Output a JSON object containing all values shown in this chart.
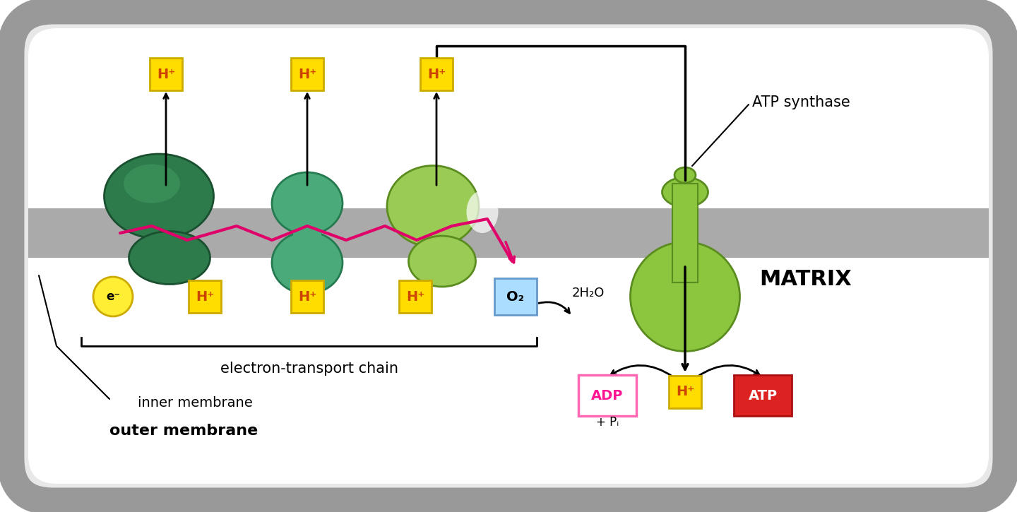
{
  "bg_color": "#ffffff",
  "gray_border_color": "#999999",
  "membrane_color": "#aaaaaa",
  "protein1_color": "#2d7a4a",
  "protein1_highlight": "#4aaa6a",
  "protein2_color": "#4aaa7a",
  "protein3_color": "#9acc55",
  "protein3_dark": "#7ab830",
  "atp_synthase_color": "#8cc63f",
  "yellow_color": "#ffdd00",
  "yellow_border": "#ccaa00",
  "pink_color": "#e0006a",
  "o2_color": "#aaddff",
  "adp_border": "#ff69b4",
  "adp_text": "#ff1493",
  "atp_bg": "#dd2222",
  "electron_color": "#ffee33",
  "title": "electron-transport chain",
  "label_inner": "inner membrane",
  "label_outer": "outer membrane",
  "label_matrix": "MATRIX",
  "label_atp_synthase": "ATP synthase",
  "label_2h2o": "2H₂O",
  "label_adp": "ADP",
  "label_pi": "+ Pᵢ",
  "label_atp": "ATP",
  "label_h_plus": "H⁺",
  "label_o2": "O₂",
  "label_electron": "e⁻"
}
